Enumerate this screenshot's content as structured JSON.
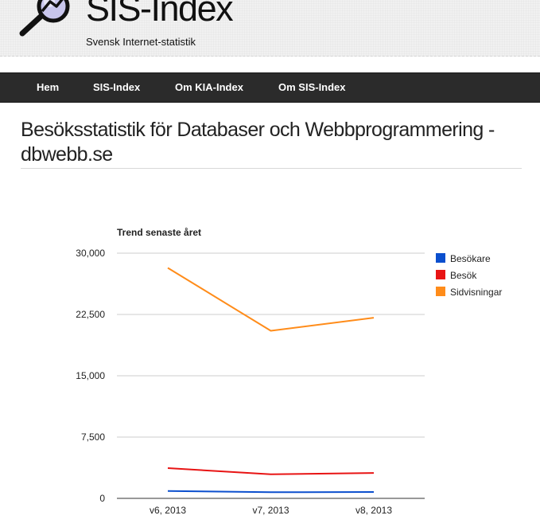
{
  "header": {
    "title": "SIS-Index",
    "subtitle": "Svensk Internet-statistik",
    "logo_icon": "magnifier-trend-icon"
  },
  "nav": {
    "items": [
      {
        "label": "Hem"
      },
      {
        "label": "SIS-Index"
      },
      {
        "label": "Om KIA-Index"
      },
      {
        "label": "Om SIS-Index"
      }
    ]
  },
  "page": {
    "title": "Besöksstatistik för Databaser och Webbprogrammering - dbwebb.se"
  },
  "chart_data": {
    "type": "line",
    "title": "Trend senaste året",
    "categories": [
      "v6, 2013",
      "v7, 2013",
      "v8, 2013"
    ],
    "ylim": [
      0,
      30000
    ],
    "yticks": [
      0,
      7500,
      15000,
      22500,
      30000
    ],
    "ytick_labels": [
      "0",
      "7,500",
      "15,000",
      "22,500",
      "30,000"
    ],
    "grid": true,
    "legend_position": "right",
    "series": [
      {
        "name": "Besökare",
        "color": "#0b4fce",
        "values": [
          900,
          750,
          780
        ]
      },
      {
        "name": "Besök",
        "color": "#e81414",
        "values": [
          3700,
          2950,
          3100
        ]
      },
      {
        "name": "Sidvisningar",
        "color": "#ff8c1a",
        "values": [
          28200,
          20500,
          22100
        ]
      }
    ]
  }
}
